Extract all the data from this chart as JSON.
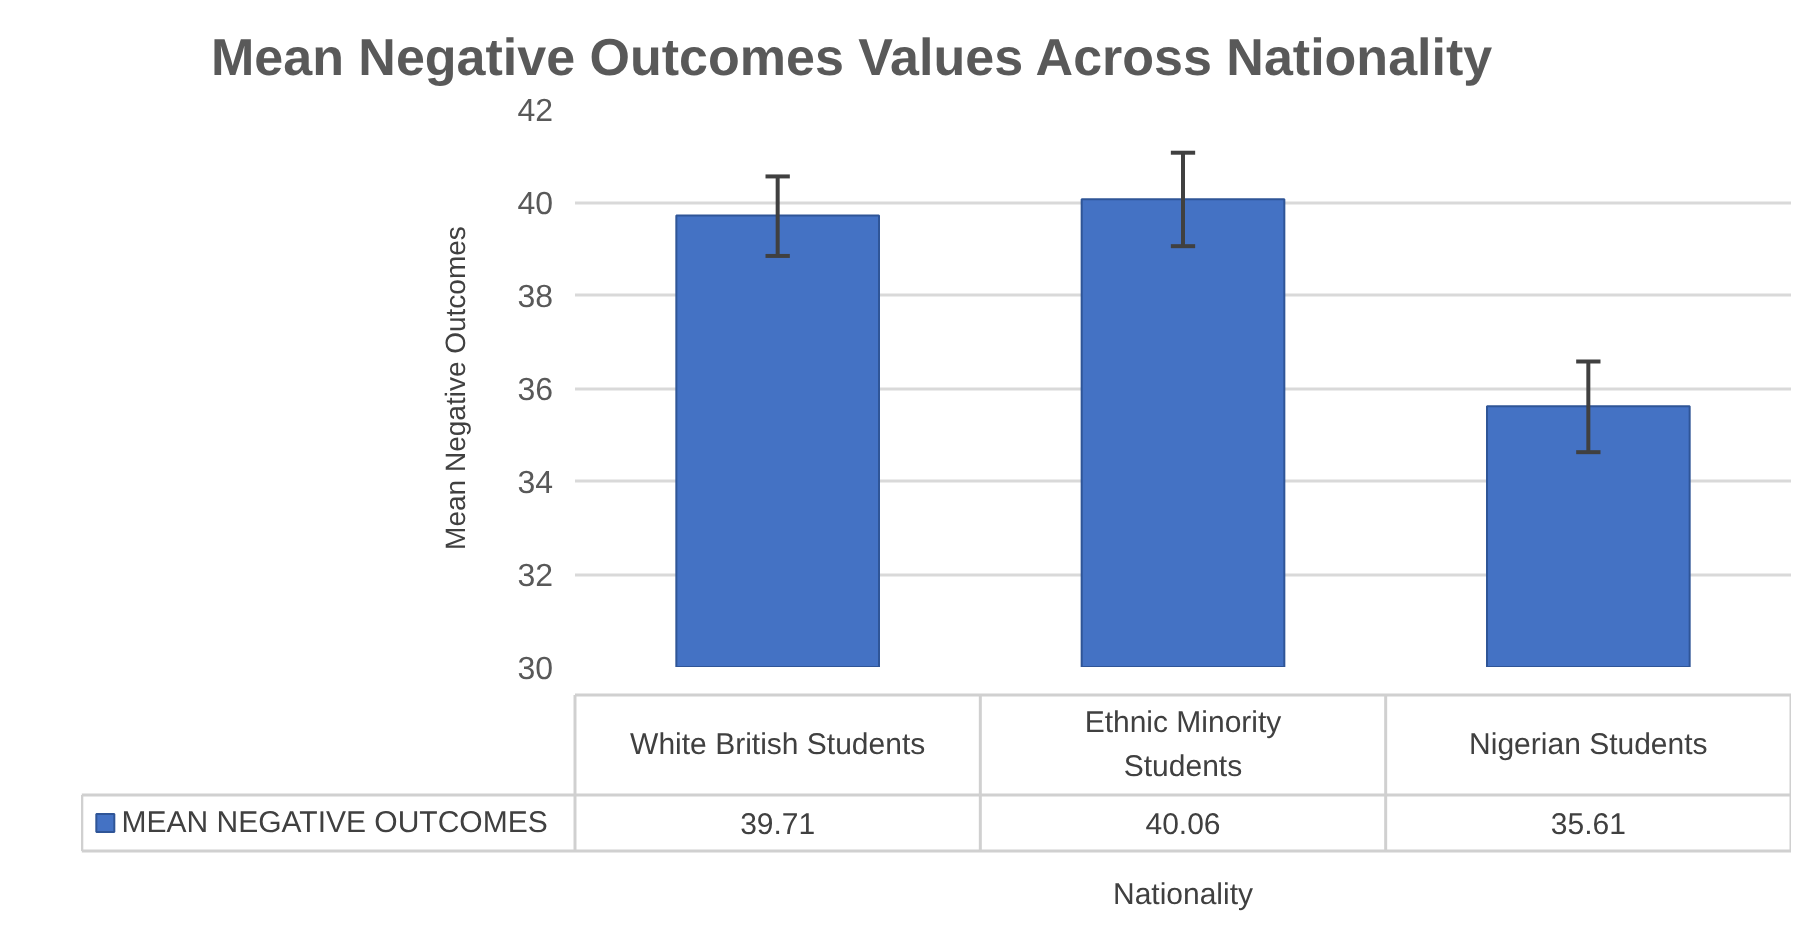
{
  "chart_data": {
    "type": "bar",
    "title": "Mean Negative Outcomes Values Across Nationality",
    "xlabel": "Nationality",
    "ylabel": "Mean Negative Outcomes",
    "categories": [
      "White British Students",
      "Ethnic Minority Students",
      "Nigerian Students"
    ],
    "series": [
      {
        "name": "MEAN NEGATIVE OUTCOMES",
        "color": "#4472c4",
        "values": [
          39.71,
          40.06,
          35.61
        ],
        "errors": [
          [
            38.84,
            40.55
          ],
          [
            39.05,
            41.06
          ],
          [
            34.62,
            36.57
          ]
        ]
      }
    ],
    "ylim": [
      30,
      42
    ],
    "yticks": [
      30,
      32,
      34,
      36,
      38,
      40,
      42
    ],
    "grid": "y",
    "legend": "bottom",
    "data_labels": true
  }
}
